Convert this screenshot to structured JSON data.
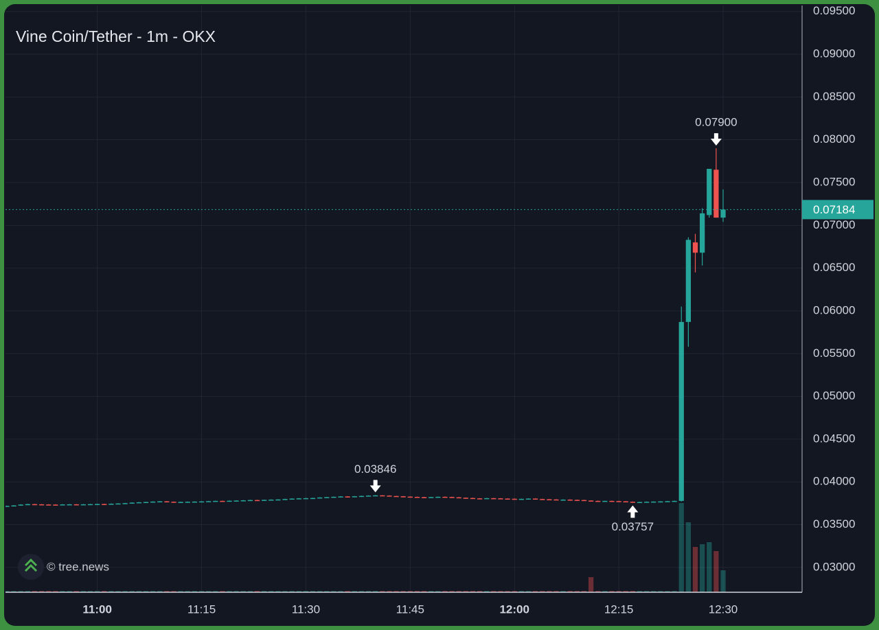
{
  "chart_data": {
    "type": "candlestick",
    "title": "Vine Coin/Tether - 1m - OKX",
    "watermark": "© tree.news",
    "x": [
      "10:47",
      "10:48",
      "10:49",
      "10:50",
      "10:51",
      "10:52",
      "10:53",
      "10:54",
      "10:55",
      "10:56",
      "10:57",
      "10:58",
      "10:59",
      "11:00",
      "11:01",
      "11:02",
      "11:03",
      "11:04",
      "11:05",
      "11:06",
      "11:07",
      "11:08",
      "11:09",
      "11:10",
      "11:11",
      "11:12",
      "11:13",
      "11:14",
      "11:15",
      "11:16",
      "11:17",
      "11:18",
      "11:19",
      "11:20",
      "11:21",
      "11:22",
      "11:23",
      "11:24",
      "11:25",
      "11:26",
      "11:27",
      "11:28",
      "11:29",
      "11:30",
      "11:31",
      "11:32",
      "11:33",
      "11:34",
      "11:35",
      "11:36",
      "11:37",
      "11:38",
      "11:39",
      "11:40",
      "11:41",
      "11:42",
      "11:43",
      "11:44",
      "11:45",
      "11:46",
      "11:47",
      "11:48",
      "11:49",
      "11:50",
      "11:51",
      "11:52",
      "11:53",
      "11:54",
      "11:55",
      "11:56",
      "11:57",
      "11:58",
      "11:59",
      "12:00",
      "12:01",
      "12:02",
      "12:03",
      "12:04",
      "12:05",
      "12:06",
      "12:07",
      "12:08",
      "12:09",
      "12:10",
      "12:11",
      "12:12",
      "12:13",
      "12:14",
      "12:15",
      "12:16",
      "12:17",
      "12:18",
      "12:19",
      "12:20",
      "12:21",
      "12:22",
      "12:23",
      "12:24",
      "12:25",
      "12:26",
      "12:27",
      "12:28",
      "12:29",
      "12:30"
    ],
    "open": [
      0.03718,
      0.0372,
      0.03725,
      0.03735,
      0.0374,
      0.03738,
      0.03736,
      0.03735,
      0.03734,
      0.03737,
      0.03738,
      0.03736,
      0.03738,
      0.0374,
      0.03742,
      0.03741,
      0.03745,
      0.03748,
      0.03752,
      0.03758,
      0.03762,
      0.03765,
      0.0377,
      0.03773,
      0.03768,
      0.03765,
      0.03766,
      0.03768,
      0.0377,
      0.03772,
      0.03775,
      0.03778,
      0.03776,
      0.0378,
      0.03782,
      0.03785,
      0.03788,
      0.03786,
      0.0379,
      0.03793,
      0.03795,
      0.038,
      0.03805,
      0.03808,
      0.0381,
      0.03812,
      0.03818,
      0.03822,
      0.03826,
      0.0383,
      0.03828,
      0.03832,
      0.03836,
      0.0384,
      0.03843,
      0.0384,
      0.03835,
      0.03832,
      0.03828,
      0.03825,
      0.03822,
      0.0382,
      0.03823,
      0.03826,
      0.03824,
      0.0382,
      0.03815,
      0.03812,
      0.03808,
      0.03806,
      0.0381,
      0.03808,
      0.03805,
      0.03803,
      0.038,
      0.03802,
      0.03805,
      0.038,
      0.03797,
      0.03795,
      0.03792,
      0.03793,
      0.0379,
      0.03788,
      0.03782,
      0.03778,
      0.03775,
      0.03778,
      0.03776,
      0.03773,
      0.03768,
      0.03762,
      0.03765,
      0.03768,
      0.0377,
      0.03772,
      0.03775,
      0.03778,
      0.0587,
      0.068,
      0.0668,
      0.0712,
      0.0765,
      0.0709
    ],
    "high": [
      0.03723,
      0.03728,
      0.03738,
      0.03743,
      0.03743,
      0.03741,
      0.03739,
      0.03738,
      0.0374,
      0.03741,
      0.03741,
      0.03741,
      0.03743,
      0.03745,
      0.03745,
      0.03748,
      0.03751,
      0.03755,
      0.03761,
      0.03765,
      0.03768,
      0.03773,
      0.03776,
      0.03776,
      0.03771,
      0.03769,
      0.03771,
      0.03773,
      0.03775,
      0.03778,
      0.03781,
      0.03781,
      0.03783,
      0.03785,
      0.03788,
      0.03791,
      0.03791,
      0.03793,
      0.03796,
      0.03798,
      0.03803,
      0.03808,
      0.03811,
      0.03813,
      0.03815,
      0.03821,
      0.03825,
      0.03829,
      0.03833,
      0.03833,
      0.03835,
      0.03839,
      0.03843,
      0.03846,
      0.03845,
      0.03843,
      0.03838,
      0.03835,
      0.03831,
      0.03828,
      0.03825,
      0.03826,
      0.03829,
      0.03829,
      0.03827,
      0.03823,
      0.03818,
      0.03815,
      0.03811,
      0.03813,
      0.03813,
      0.03811,
      0.03808,
      0.03806,
      0.03805,
      0.03808,
      0.03808,
      0.03803,
      0.038,
      0.03798,
      0.03796,
      0.03796,
      0.03793,
      0.03791,
      0.03785,
      0.03781,
      0.03781,
      0.03781,
      0.03779,
      0.03776,
      0.03771,
      0.03768,
      0.03771,
      0.03773,
      0.03775,
      0.03778,
      0.03781,
      0.0605,
      0.0686,
      0.069,
      0.072,
      0.0766,
      0.079,
      0.0742
    ],
    "low": [
      0.03715,
      0.03717,
      0.03722,
      0.03732,
      0.03735,
      0.03733,
      0.03732,
      0.03731,
      0.03731,
      0.03734,
      0.03733,
      0.03733,
      0.03735,
      0.03737,
      0.03738,
      0.03738,
      0.03742,
      0.03745,
      0.03749,
      0.03755,
      0.03759,
      0.03762,
      0.03767,
      0.03765,
      0.03762,
      0.03762,
      0.03763,
      0.03765,
      0.03767,
      0.03769,
      0.03772,
      0.03773,
      0.03773,
      0.03777,
      0.03779,
      0.03782,
      0.03783,
      0.03783,
      0.03787,
      0.0379,
      0.03792,
      0.03797,
      0.03802,
      0.03805,
      0.03807,
      0.03809,
      0.03815,
      0.03819,
      0.03823,
      0.03825,
      0.03825,
      0.03829,
      0.03833,
      0.03837,
      0.03837,
      0.03832,
      0.03829,
      0.03825,
      0.03822,
      0.03819,
      0.03817,
      0.03817,
      0.0382,
      0.03821,
      0.03817,
      0.03812,
      0.03809,
      0.03805,
      0.03803,
      0.03803,
      0.03805,
      0.03802,
      0.038,
      0.03797,
      0.03797,
      0.03799,
      0.03797,
      0.03794,
      0.03792,
      0.03789,
      0.03789,
      0.03787,
      0.03785,
      0.03779,
      0.03775,
      0.03772,
      0.03772,
      0.03773,
      0.0377,
      0.03765,
      0.03757,
      0.03759,
      0.03762,
      0.03765,
      0.03767,
      0.03769,
      0.03772,
      0.0377,
      0.0558,
      0.0645,
      0.0653,
      0.0709,
      0.0709,
      0.0704
    ],
    "close": [
      0.0372,
      0.03725,
      0.03735,
      0.0374,
      0.03738,
      0.03736,
      0.03735,
      0.03734,
      0.03737,
      0.03738,
      0.03736,
      0.03738,
      0.0374,
      0.03742,
      0.03741,
      0.03745,
      0.03748,
      0.03752,
      0.03758,
      0.03762,
      0.03765,
      0.0377,
      0.03773,
      0.03768,
      0.03765,
      0.03766,
      0.03768,
      0.0377,
      0.03772,
      0.03775,
      0.03778,
      0.03776,
      0.0378,
      0.03782,
      0.03785,
      0.03788,
      0.03786,
      0.0379,
      0.03793,
      0.03795,
      0.038,
      0.03805,
      0.03808,
      0.0381,
      0.03812,
      0.03818,
      0.03822,
      0.03826,
      0.0383,
      0.03828,
      0.03832,
      0.03836,
      0.0384,
      0.03843,
      0.0384,
      0.03835,
      0.03832,
      0.03828,
      0.03825,
      0.03822,
      0.0382,
      0.03823,
      0.03826,
      0.03824,
      0.0382,
      0.03815,
      0.03812,
      0.03808,
      0.03806,
      0.0381,
      0.03808,
      0.03805,
      0.03803,
      0.038,
      0.03802,
      0.03805,
      0.038,
      0.03797,
      0.03795,
      0.03792,
      0.03793,
      0.0379,
      0.03788,
      0.03782,
      0.03778,
      0.03775,
      0.03778,
      0.03776,
      0.03773,
      0.03768,
      0.03762,
      0.03765,
      0.03768,
      0.0377,
      0.03772,
      0.03775,
      0.03778,
      0.0587,
      0.0683,
      0.0668,
      0.0714,
      0.0766,
      0.0709,
      0.07184
    ],
    "volume": [
      2,
      2,
      2,
      2,
      2,
      2,
      2,
      2,
      2,
      2,
      2,
      2,
      2,
      2,
      2,
      2,
      2,
      2,
      2,
      2,
      2,
      2,
      2,
      2,
      2,
      2,
      2,
      2,
      2,
      2,
      2,
      2,
      2,
      2,
      2,
      2,
      2,
      2,
      2,
      2,
      2,
      2,
      2,
      2,
      2,
      2,
      2,
      2,
      2,
      2,
      2,
      2,
      2,
      2,
      2,
      2,
      2,
      2,
      2,
      2,
      2,
      2,
      2,
      2,
      2,
      2,
      2,
      2,
      2,
      2,
      2,
      2,
      2,
      2,
      2,
      2,
      2,
      2,
      2,
      2,
      2,
      2,
      2,
      2,
      22,
      2,
      2,
      2,
      2,
      2,
      2,
      2,
      2,
      2,
      2,
      2,
      2,
      130,
      102,
      66,
      70,
      73,
      60,
      32
    ],
    "up_color": "#26a69a",
    "down_color": "#ef5350",
    "ylim": [
      0.0271,
      0.0957
    ],
    "yticks": [
      {
        "value": 0.03,
        "label": "0.03000"
      },
      {
        "value": 0.035,
        "label": "0.03500"
      },
      {
        "value": 0.04,
        "label": "0.04000"
      },
      {
        "value": 0.045,
        "label": "0.04500"
      },
      {
        "value": 0.05,
        "label": "0.05000"
      },
      {
        "value": 0.055,
        "label": "0.05500"
      },
      {
        "value": 0.06,
        "label": "0.06000"
      },
      {
        "value": 0.065,
        "label": "0.06500"
      },
      {
        "value": 0.07,
        "label": "0.07000"
      },
      {
        "value": 0.075,
        "label": "0.07500"
      },
      {
        "value": 0.08,
        "label": "0.08000"
      },
      {
        "value": 0.085,
        "label": "0.08500"
      },
      {
        "value": 0.09,
        "label": "0.09000"
      },
      {
        "value": 0.095,
        "label": "0.09500"
      }
    ],
    "xticks": [
      "11:00",
      "11:15",
      "11:30",
      "11:45",
      "12:00",
      "12:15",
      "12:30"
    ],
    "grid": true,
    "annotations": [
      {
        "x": "11:40",
        "value": 0.03846,
        "position": "above"
      },
      {
        "x": "12:17",
        "value": 0.03757,
        "position": "below"
      },
      {
        "x": "12:29",
        "value": 0.079,
        "label": "0.07900",
        "position": "above"
      }
    ]
  }
}
